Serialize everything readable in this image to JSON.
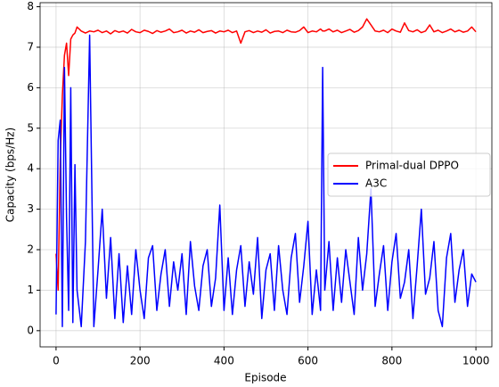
{
  "chart_data": {
    "type": "line",
    "x_label": "Episode",
    "y_label": "Capacity (bps/Hz)",
    "x": [
      0,
      5,
      10,
      15,
      20,
      25,
      30,
      35,
      40,
      45,
      50,
      60,
      70,
      80,
      90,
      100,
      110,
      120,
      130,
      140,
      150,
      160,
      170,
      180,
      190,
      200,
      210,
      220,
      230,
      240,
      250,
      260,
      270,
      280,
      290,
      300,
      310,
      320,
      330,
      340,
      350,
      360,
      370,
      380,
      390,
      400,
      410,
      420,
      430,
      440,
      450,
      460,
      470,
      480,
      490,
      500,
      510,
      520,
      530,
      540,
      550,
      560,
      570,
      580,
      590,
      600,
      610,
      620,
      630,
      635,
      640,
      650,
      660,
      670,
      680,
      690,
      700,
      710,
      720,
      730,
      740,
      750,
      760,
      770,
      780,
      790,
      800,
      810,
      820,
      830,
      840,
      850,
      860,
      870,
      880,
      890,
      900,
      910,
      920,
      930,
      940,
      950,
      960,
      970,
      980,
      990,
      1000
    ],
    "series": [
      {
        "name": "Primal-dual DPPO",
        "color": "#ff0000",
        "values": [
          1.9,
          1.0,
          4.2,
          5.8,
          6.8,
          7.1,
          6.3,
          7.2,
          7.3,
          7.35,
          7.5,
          7.4,
          7.35,
          7.4,
          7.38,
          7.42,
          7.36,
          7.4,
          7.33,
          7.41,
          7.37,
          7.4,
          7.35,
          7.44,
          7.38,
          7.36,
          7.42,
          7.39,
          7.34,
          7.41,
          7.37,
          7.4,
          7.45,
          7.36,
          7.38,
          7.42,
          7.35,
          7.4,
          7.37,
          7.43,
          7.36,
          7.39,
          7.41,
          7.35,
          7.4,
          7.38,
          7.42,
          7.36,
          7.4,
          7.1,
          7.38,
          7.41,
          7.36,
          7.4,
          7.37,
          7.43,
          7.35,
          7.39,
          7.4,
          7.36,
          7.42,
          7.38,
          7.37,
          7.41,
          7.5,
          7.36,
          7.4,
          7.38,
          7.45,
          7.4,
          7.4,
          7.45,
          7.38,
          7.42,
          7.36,
          7.4,
          7.44,
          7.37,
          7.41,
          7.5,
          7.7,
          7.55,
          7.4,
          7.38,
          7.42,
          7.36,
          7.45,
          7.4,
          7.37,
          7.6,
          7.41,
          7.38,
          7.43,
          7.36,
          7.4,
          7.55,
          7.38,
          7.42,
          7.36,
          7.4,
          7.45,
          7.38,
          7.42,
          7.37,
          7.4,
          7.5,
          7.38
        ]
      },
      {
        "name": "A3C",
        "color": "#0000ff",
        "values": [
          0.4,
          4.7,
          5.2,
          0.1,
          6.5,
          2.8,
          0.5,
          6.0,
          0.2,
          4.1,
          1.0,
          0.1,
          2.2,
          7.3,
          0.1,
          1.5,
          3.0,
          0.8,
          2.3,
          0.3,
          1.9,
          0.2,
          1.6,
          0.4,
          2.0,
          1.0,
          0.3,
          1.8,
          2.1,
          0.5,
          1.4,
          2.0,
          0.6,
          1.7,
          1.0,
          1.9,
          0.4,
          2.2,
          1.1,
          0.5,
          1.6,
          2.0,
          0.6,
          1.3,
          3.1,
          0.5,
          1.8,
          0.4,
          1.5,
          2.1,
          0.6,
          1.7,
          0.9,
          2.3,
          0.3,
          1.5,
          1.9,
          0.5,
          2.1,
          1.0,
          0.4,
          1.8,
          2.4,
          0.7,
          1.6,
          2.7,
          0.4,
          1.5,
          0.5,
          6.5,
          1.0,
          2.2,
          0.5,
          1.8,
          0.7,
          2.0,
          1.2,
          0.4,
          2.3,
          1.0,
          1.9,
          3.5,
          0.6,
          1.4,
          2.1,
          0.5,
          1.7,
          2.4,
          0.8,
          1.2,
          2.0,
          0.3,
          1.6,
          3.0,
          0.9,
          1.3,
          2.2,
          0.5,
          0.1,
          1.8,
          2.4,
          0.7,
          1.5,
          2.0,
          0.6,
          1.4,
          1.2
        ]
      }
    ],
    "xlim": [
      -38,
      1038
    ],
    "ylim": [
      -0.4,
      8.1
    ],
    "xticks": [
      0,
      200,
      400,
      600,
      800,
      1000
    ],
    "yticks": [
      0,
      1,
      2,
      3,
      4,
      5,
      6,
      7,
      8
    ],
    "grid": true,
    "legend_position": "center right"
  }
}
